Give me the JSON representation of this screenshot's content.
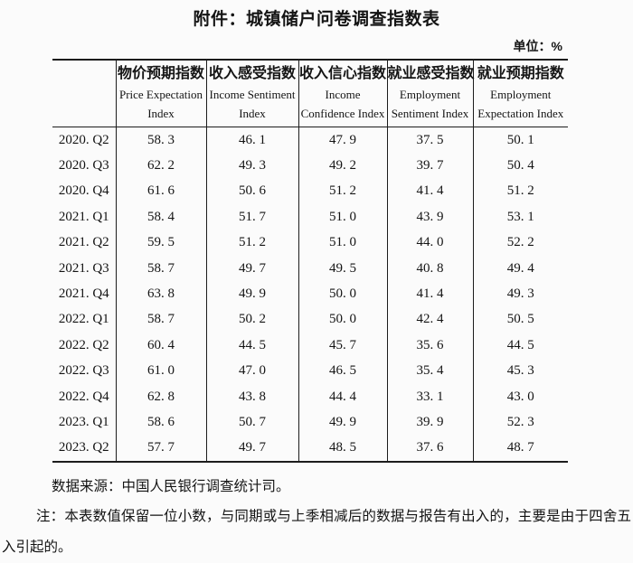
{
  "page": {
    "title": "附件：城镇储户问卷调查指数表",
    "unit_label": "单位：%"
  },
  "table": {
    "columns": [
      {
        "zh": "物价预期指数",
        "en": "Price Expectation Index"
      },
      {
        "zh": "收入感受指数",
        "en": "Income Sentiment Index"
      },
      {
        "zh": "收入信心指数",
        "en": "Income Confidence Index"
      },
      {
        "zh": "就业感受指数",
        "en": "Employment Sentiment Index"
      },
      {
        "zh": "就业预期指数",
        "en": "Employment Expectation Index"
      }
    ],
    "rows": [
      {
        "period": "2020.Q2",
        "values": [
          "58.3",
          "46.1",
          "47.9",
          "37.5",
          "50.1"
        ]
      },
      {
        "period": "2020.Q3",
        "values": [
          "62.2",
          "49.3",
          "49.2",
          "39.7",
          "50.4"
        ]
      },
      {
        "period": "2020.Q4",
        "values": [
          "61.6",
          "50.6",
          "51.2",
          "41.4",
          "51.2"
        ]
      },
      {
        "period": "2021.Q1",
        "values": [
          "58.4",
          "51.7",
          "51.0",
          "43.9",
          "53.1"
        ]
      },
      {
        "period": "2021.Q2",
        "values": [
          "59.5",
          "51.2",
          "51.0",
          "44.0",
          "52.2"
        ]
      },
      {
        "period": "2021.Q3",
        "values": [
          "58.7",
          "49.7",
          "49.5",
          "40.8",
          "49.4"
        ]
      },
      {
        "period": "2021.Q4",
        "values": [
          "63.8",
          "49.9",
          "50.0",
          "41.4",
          "49.3"
        ]
      },
      {
        "period": "2022.Q1",
        "values": [
          "58.7",
          "50.2",
          "50.0",
          "42.4",
          "50.5"
        ]
      },
      {
        "period": "2022.Q2",
        "values": [
          "60.4",
          "44.5",
          "45.7",
          "35.6",
          "44.5"
        ]
      },
      {
        "period": "2022.Q3",
        "values": [
          "61.0",
          "47.0",
          "46.5",
          "35.4",
          "45.3"
        ]
      },
      {
        "period": "2022.Q4",
        "values": [
          "62.8",
          "43.8",
          "44.4",
          "33.1",
          "43.0"
        ]
      },
      {
        "period": "2023.Q1",
        "values": [
          "58.6",
          "50.7",
          "49.9",
          "39.9",
          "52.3"
        ]
      },
      {
        "period": "2023.Q2",
        "values": [
          "57.7",
          "49.7",
          "48.5",
          "37.6",
          "48.7"
        ]
      }
    ]
  },
  "notes": {
    "source": "数据来源：中国人民银行调查统计司。",
    "note": "注：本表数值保留一位小数，与同期或与上季相减后的数据与报告有出入的，主要是由于四舍五入引起的。"
  }
}
